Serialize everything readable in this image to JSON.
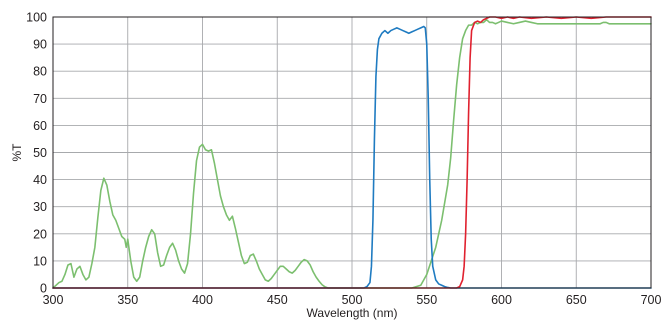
{
  "chart_data": {
    "type": "line",
    "title": "",
    "xlabel": "Wavelength (nm)",
    "ylabel": "%T",
    "xlim": [
      300,
      700
    ],
    "ylim": [
      0,
      100
    ],
    "x_ticks": [
      "300",
      "350",
      "400",
      "450",
      "500",
      "550",
      "600",
      "650",
      "700"
    ],
    "y_ticks": [
      "0",
      "10",
      "20",
      "30",
      "40",
      "50",
      "60",
      "70",
      "80",
      "90",
      "100"
    ],
    "grid": true,
    "legend": "none",
    "series": [
      {
        "color": "#7cbf6f",
        "points": [
          [
            300,
            0
          ],
          [
            302,
            1
          ],
          [
            304,
            2
          ],
          [
            306,
            2.5
          ],
          [
            308,
            5
          ],
          [
            310,
            8.5
          ],
          [
            312,
            9
          ],
          [
            314,
            4
          ],
          [
            316,
            7
          ],
          [
            318,
            8
          ],
          [
            320,
            5
          ],
          [
            322,
            3
          ],
          [
            324,
            4
          ],
          [
            326,
            9
          ],
          [
            328,
            15
          ],
          [
            330,
            26
          ],
          [
            332,
            36
          ],
          [
            334,
            40.5
          ],
          [
            336,
            38
          ],
          [
            338,
            32
          ],
          [
            340,
            27
          ],
          [
            342,
            25
          ],
          [
            344,
            22
          ],
          [
            346,
            19
          ],
          [
            348,
            18
          ],
          [
            349,
            15
          ],
          [
            350,
            18
          ],
          [
            352,
            10
          ],
          [
            354,
            4
          ],
          [
            356,
            2.5
          ],
          [
            358,
            4
          ],
          [
            360,
            10
          ],
          [
            362,
            15
          ],
          [
            364,
            19
          ],
          [
            366,
            21.5
          ],
          [
            368,
            20
          ],
          [
            370,
            13
          ],
          [
            372,
            8
          ],
          [
            374,
            8.5
          ],
          [
            376,
            12
          ],
          [
            378,
            15
          ],
          [
            380,
            16.5
          ],
          [
            382,
            14
          ],
          [
            384,
            10
          ],
          [
            386,
            7
          ],
          [
            388,
            5.5
          ],
          [
            390,
            9
          ],
          [
            392,
            20
          ],
          [
            394,
            35
          ],
          [
            396,
            47
          ],
          [
            398,
            52
          ],
          [
            400,
            53
          ],
          [
            402,
            51
          ],
          [
            404,
            50.5
          ],
          [
            406,
            51
          ],
          [
            408,
            46
          ],
          [
            410,
            40
          ],
          [
            412,
            34
          ],
          [
            414,
            30
          ],
          [
            416,
            27
          ],
          [
            418,
            25
          ],
          [
            420,
            26.5
          ],
          [
            422,
            22
          ],
          [
            424,
            17
          ],
          [
            426,
            12
          ],
          [
            428,
            9
          ],
          [
            430,
            9.5
          ],
          [
            432,
            12
          ],
          [
            434,
            12.5
          ],
          [
            436,
            10
          ],
          [
            438,
            7
          ],
          [
            440,
            5
          ],
          [
            442,
            3
          ],
          [
            444,
            2.5
          ],
          [
            446,
            3.5
          ],
          [
            448,
            5
          ],
          [
            450,
            6.5
          ],
          [
            452,
            8
          ],
          [
            454,
            8
          ],
          [
            456,
            7
          ],
          [
            458,
            6
          ],
          [
            460,
            5.5
          ],
          [
            462,
            6.5
          ],
          [
            464,
            8
          ],
          [
            466,
            9.5
          ],
          [
            468,
            10.5
          ],
          [
            470,
            10
          ],
          [
            472,
            8.5
          ],
          [
            474,
            6
          ],
          [
            476,
            4
          ],
          [
            478,
            2.5
          ],
          [
            480,
            1.2
          ],
          [
            482,
            0.4
          ],
          [
            484,
            0
          ],
          [
            500,
            0
          ],
          [
            540,
            0
          ],
          [
            546,
            1
          ],
          [
            550,
            5
          ],
          [
            556,
            15
          ],
          [
            560,
            25
          ],
          [
            564,
            38
          ],
          [
            566,
            48
          ],
          [
            568,
            62
          ],
          [
            570,
            75
          ],
          [
            572,
            85
          ],
          [
            574,
            92
          ],
          [
            576,
            95
          ],
          [
            578,
            97
          ],
          [
            580,
            97
          ],
          [
            582,
            98
          ],
          [
            584,
            97.5
          ],
          [
            586,
            98
          ],
          [
            588,
            98
          ],
          [
            590,
            99
          ],
          [
            592,
            98
          ],
          [
            594,
            98
          ],
          [
            596,
            97.5
          ],
          [
            598,
            98
          ],
          [
            600,
            98.5
          ],
          [
            604,
            98
          ],
          [
            608,
            97.5
          ],
          [
            612,
            98
          ],
          [
            616,
            98.5
          ],
          [
            620,
            98
          ],
          [
            624,
            97.5
          ],
          [
            630,
            97.5
          ],
          [
            640,
            97.5
          ],
          [
            650,
            97.5
          ],
          [
            660,
            97.5
          ],
          [
            666,
            97.5
          ],
          [
            668,
            98
          ],
          [
            670,
            98
          ],
          [
            672,
            97.5
          ],
          [
            680,
            97.5
          ],
          [
            690,
            97.5
          ],
          [
            700,
            97.5
          ]
        ]
      },
      {
        "color": "#1f7bc1",
        "points": [
          [
            300,
            0
          ],
          [
            500,
            0
          ],
          [
            508,
            0
          ],
          [
            510,
            0.5
          ],
          [
            512,
            2
          ],
          [
            513,
            8
          ],
          [
            514,
            25
          ],
          [
            515,
            55
          ],
          [
            516,
            78
          ],
          [
            517,
            88
          ],
          [
            518,
            92
          ],
          [
            520,
            94
          ],
          [
            522,
            95
          ],
          [
            524,
            94
          ],
          [
            526,
            95
          ],
          [
            528,
            95.5
          ],
          [
            530,
            96
          ],
          [
            532,
            95.5
          ],
          [
            534,
            95
          ],
          [
            536,
            94.5
          ],
          [
            538,
            94
          ],
          [
            540,
            94.5
          ],
          [
            542,
            95
          ],
          [
            544,
            95.5
          ],
          [
            546,
            96
          ],
          [
            548,
            96.5
          ],
          [
            549,
            96
          ],
          [
            550,
            90
          ],
          [
            551,
            70
          ],
          [
            552,
            40
          ],
          [
            553,
            18
          ],
          [
            554,
            8
          ],
          [
            556,
            3
          ],
          [
            558,
            1.5
          ],
          [
            560,
            1
          ],
          [
            562,
            0.5
          ],
          [
            564,
            0.2
          ],
          [
            566,
            0
          ],
          [
            700,
            0
          ]
        ]
      },
      {
        "color": "#e0212f",
        "points": [
          [
            300,
            0
          ],
          [
            560,
            0
          ],
          [
            570,
            0
          ],
          [
            572,
            0.5
          ],
          [
            574,
            3
          ],
          [
            575,
            8
          ],
          [
            576,
            20
          ],
          [
            577,
            40
          ],
          [
            578,
            65
          ],
          [
            579,
            85
          ],
          [
            580,
            95
          ],
          [
            582,
            98
          ],
          [
            584,
            98.5
          ],
          [
            586,
            98
          ],
          [
            588,
            99
          ],
          [
            590,
            99.5
          ],
          [
            592,
            100
          ],
          [
            596,
            100
          ],
          [
            600,
            99.5
          ],
          [
            604,
            100
          ],
          [
            608,
            99.5
          ],
          [
            612,
            100
          ],
          [
            620,
            99.5
          ],
          [
            630,
            100
          ],
          [
            640,
            99.5
          ],
          [
            650,
            100
          ],
          [
            660,
            99.5
          ],
          [
            670,
            100
          ],
          [
            680,
            100
          ],
          [
            690,
            100
          ],
          [
            700,
            100
          ]
        ]
      }
    ]
  }
}
